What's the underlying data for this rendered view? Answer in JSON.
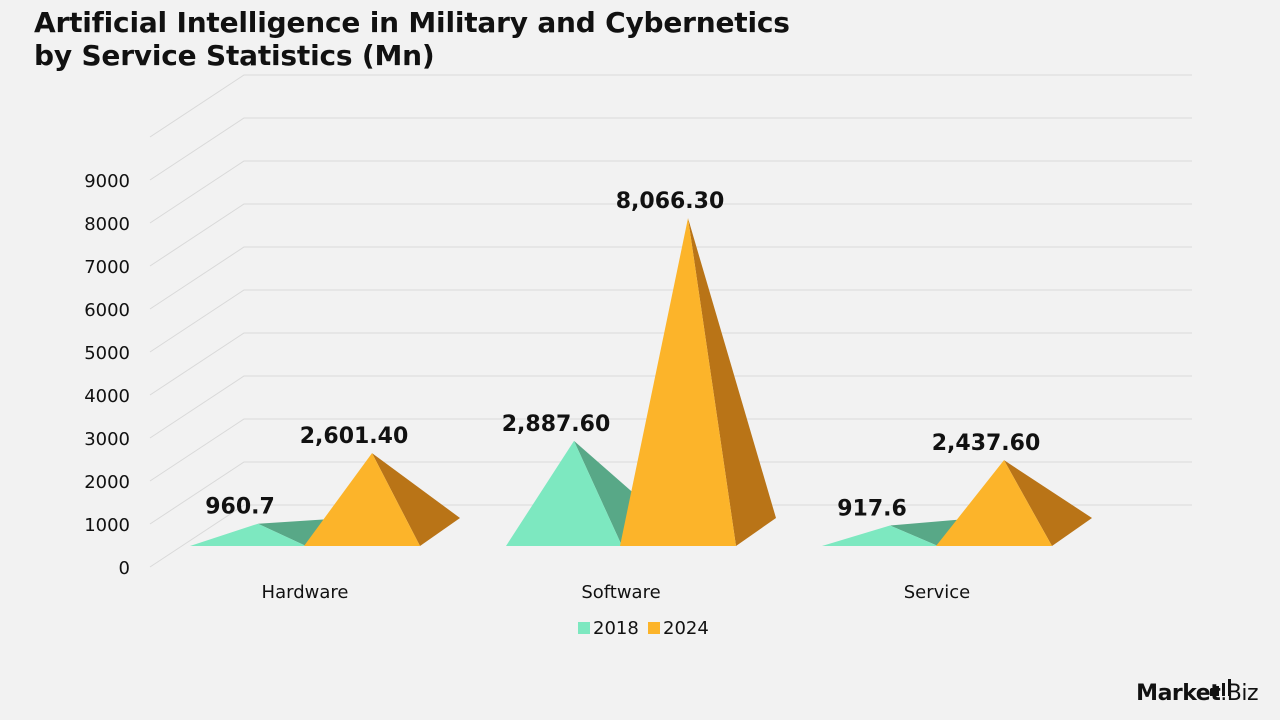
{
  "page": {
    "title_line1": "Artificial Intelligence in Military and Cybernetics",
    "title_line2": "by Service Statistics (Mn)"
  },
  "brand": {
    "name": "Market",
    "tld": ".Biz",
    "icon": "bar-chart-icon"
  },
  "colors": {
    "background": "#f2f2f2",
    "gridline": "#d9d9d9",
    "series_2018_front": "#7de8c0",
    "series_2018_side": "#58a887",
    "series_2024_front": "#fcb42a",
    "series_2024_side": "#b97417"
  },
  "chart_data": {
    "type": "bar",
    "style": "3d-pyramid",
    "title": "Artificial Intelligence in Military and Cybernetics by Service Statistics (Mn)",
    "xlabel": "",
    "ylabel": "",
    "ylim": [
      0,
      9000
    ],
    "yticks": [
      0,
      1000,
      2000,
      3000,
      4000,
      5000,
      6000,
      7000,
      8000,
      9000
    ],
    "grid": true,
    "legend_position": "bottom",
    "categories": [
      "Hardware",
      "Software",
      "Service"
    ],
    "series": [
      {
        "name": "2018",
        "color": "#7de8c0",
        "values": [
          960.7,
          2887.6,
          917.6
        ],
        "labels": [
          "960.7",
          "2,887.60",
          "917.6"
        ]
      },
      {
        "name": "2024",
        "color": "#fcb42a",
        "values": [
          2601.4,
          8066.3,
          2437.6
        ],
        "labels": [
          "2,601.40",
          "8,066.30",
          "2,437.60"
        ]
      }
    ]
  }
}
